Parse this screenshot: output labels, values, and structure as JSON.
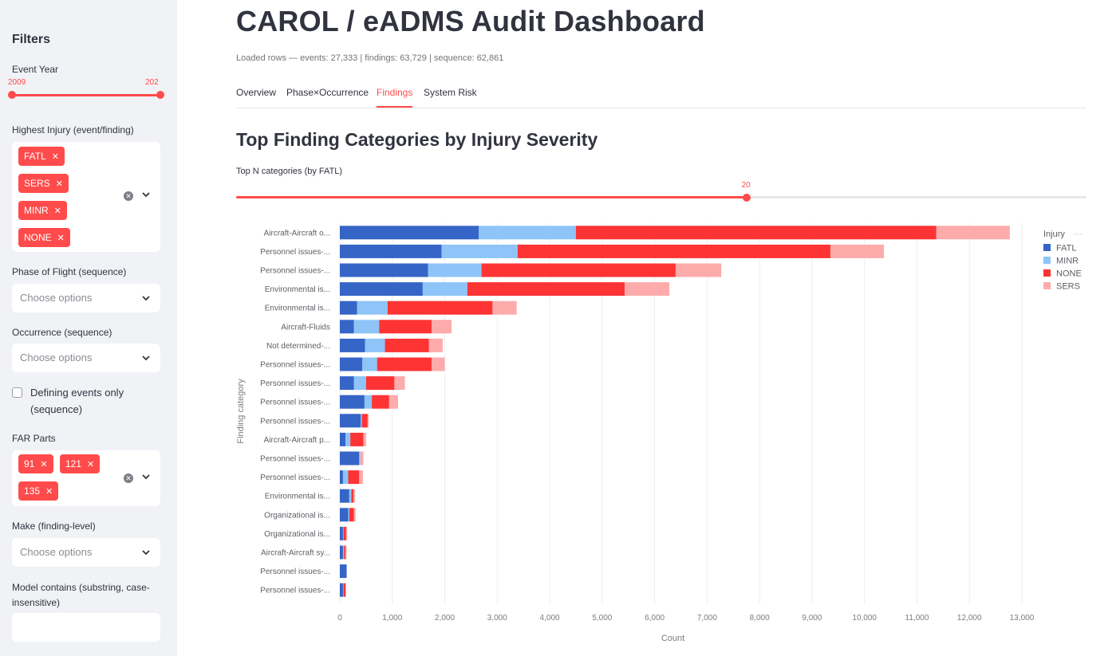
{
  "sidebar": {
    "title": "Filters",
    "event_year": {
      "label": "Event Year",
      "min_label": "2009",
      "max_label": "202"
    },
    "highest_injury": {
      "label": "Highest Injury (event/finding)",
      "tags": [
        "FATL",
        "SERS",
        "MINR",
        "NONE"
      ]
    },
    "phase_of_flight": {
      "label": "Phase of Flight (sequence)",
      "placeholder": "Choose options"
    },
    "occurrence": {
      "label": "Occurrence (sequence)",
      "placeholder": "Choose options"
    },
    "defining_events": {
      "label": "Defining events only (sequence)",
      "checked": false
    },
    "far_parts": {
      "label": "FAR Parts",
      "tags": [
        "91",
        "121",
        "135"
      ]
    },
    "make": {
      "label": "Make (finding-level)",
      "placeholder": "Choose options"
    },
    "model_contains": {
      "label": "Model contains (substring, case-insensitive)",
      "value": ""
    }
  },
  "main": {
    "title": "CAROL / eADMS Audit Dashboard",
    "caption": "Loaded rows — events: 27,333 | findings: 63,729 | sequence: 62,861",
    "tabs": [
      {
        "label": "Overview",
        "active": false
      },
      {
        "label": "Phase×Occurrence",
        "active": false
      },
      {
        "label": "Findings",
        "active": true
      },
      {
        "label": "System Risk",
        "active": false
      }
    ],
    "section_title": "Top Finding Categories by Injury Severity",
    "topn": {
      "label": "Top N categories (by FATL)",
      "value": "20",
      "fraction": 0.6
    }
  },
  "colors": {
    "accent": "#ff4b4b",
    "FATL": "#3565c6",
    "MINR": "#8ec4f7",
    "NONE": "#fe3333",
    "SERS": "#fdabab"
  },
  "chart_data": {
    "type": "bar",
    "orientation": "horizontal",
    "stacked": true,
    "xlabel": "Count",
    "ylabel": "Finding category",
    "legend_title": "Injury",
    "legend_position": "top-right",
    "xlim": [
      0,
      13000
    ],
    "xticks": [
      "0",
      "1,000",
      "2,000",
      "3,000",
      "4,000",
      "5,000",
      "6,000",
      "7,000",
      "8,000",
      "9,000",
      "10,000",
      "11,000",
      "12,000",
      "13,000"
    ],
    "grid": true,
    "categories": [
      "Aircraft-Aircraft o...",
      "Personnel issues-...",
      "Personnel issues-...",
      "Environmental is...",
      "Environmental is...",
      "Aircraft-Fluids",
      "Not determined-...",
      "Personnel issues-...",
      "Personnel issues-...",
      "Personnel issues-...",
      "Personnel issues-...",
      "Aircraft-Aircraft p...",
      "Personnel issues-...",
      "Personnel issues-...",
      "Environmental is...",
      "Organizational is...",
      "Organizational is...",
      "Aircraft-Aircraft sy...",
      "Personnel issues-...",
      "Personnel issues-..."
    ],
    "series": [
      {
        "name": "FATL",
        "values": [
          2650,
          1940,
          1680,
          1580,
          330,
          270,
          480,
          430,
          270,
          470,
          400,
          110,
          370,
          60,
          180,
          160,
          60,
          60,
          130,
          60
        ]
      },
      {
        "name": "MINR",
        "values": [
          1850,
          1450,
          1020,
          850,
          580,
          480,
          380,
          280,
          230,
          140,
          20,
          90,
          20,
          100,
          40,
          20,
          10,
          20,
          0,
          10
        ]
      },
      {
        "name": "NONE",
        "values": [
          6870,
          5960,
          3700,
          3000,
          2000,
          1000,
          840,
          1040,
          540,
          330,
          110,
          250,
          0,
          210,
          40,
          90,
          50,
          30,
          0,
          40
        ]
      },
      {
        "name": "SERS",
        "values": [
          1400,
          1020,
          870,
          850,
          460,
          380,
          260,
          250,
          200,
          170,
          20,
          50,
          60,
          70,
          30,
          30,
          20,
          20,
          0,
          10
        ]
      }
    ]
  }
}
